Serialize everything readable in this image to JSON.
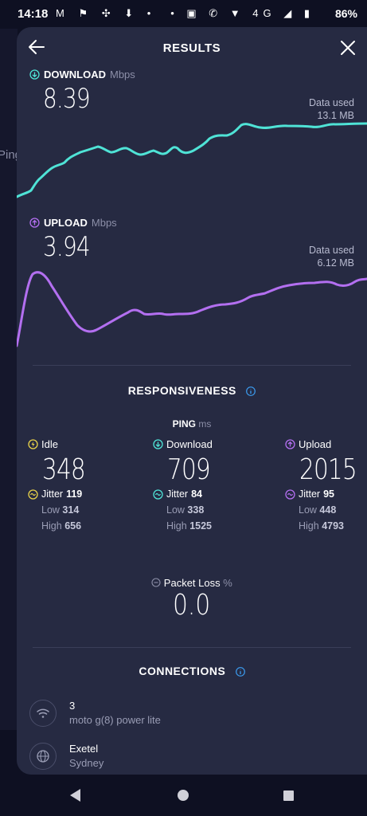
{
  "status_bar": {
    "time": "14:18",
    "left_icons": "M ⚑ ✣ ⬇ •",
    "right_icons": "• ▣ ✆ ▼ 4G ◢ ▮",
    "battery": "86%"
  },
  "background": {
    "partial_text": "Ping"
  },
  "header": {
    "title": "RESULTS"
  },
  "download": {
    "label": "DOWNLOAD",
    "unit": "Mbps",
    "value": "8.39",
    "data_used_label": "Data used",
    "data_used_value": "13.1 MB",
    "color": "#4fe3d6"
  },
  "upload": {
    "label": "UPLOAD",
    "unit": "Mbps",
    "value": "3.94",
    "data_used_label": "Data used",
    "data_used_value": "6.12 MB",
    "color": "#b36ff0"
  },
  "responsiveness": {
    "title": "RESPONSIVENESS",
    "ping_label": "PING",
    "ping_unit": "ms",
    "columns": [
      {
        "label": "Idle",
        "value": "348",
        "jitter_label": "Jitter",
        "jitter": "119",
        "low_label": "Low",
        "low": "314",
        "high_label": "High",
        "high": "656",
        "icon_color": "#e8d24a"
      },
      {
        "label": "Download",
        "value": "709",
        "jitter_label": "Jitter",
        "jitter": "84",
        "low_label": "Low",
        "low": "338",
        "high_label": "High",
        "high": "1525",
        "icon_color": "#4fe3d6"
      },
      {
        "label": "Upload",
        "value": "2015",
        "jitter_label": "Jitter",
        "jitter": "95",
        "low_label": "Low",
        "low": "448",
        "high_label": "High",
        "high": "4793",
        "icon_color": "#b36ff0"
      }
    ],
    "jitter_icon_color": "#e8d24a"
  },
  "packet_loss": {
    "label": "Packet Loss",
    "unit": "%",
    "value": "0.0"
  },
  "connections": {
    "title": "CONNECTIONS",
    "items": [
      {
        "name": "3",
        "sub": "moto g(8) power lite",
        "icon": "wifi-icon"
      },
      {
        "name": "Exetel",
        "sub": "Sydney",
        "icon": "globe-icon"
      }
    ]
  },
  "accent_info": "#3b9cf0"
}
